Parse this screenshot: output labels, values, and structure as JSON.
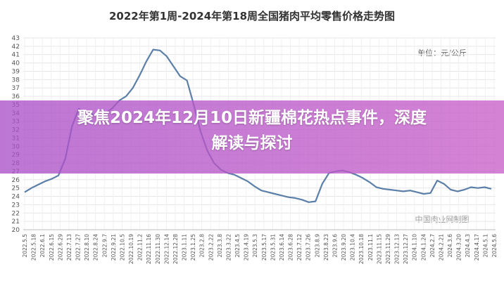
{
  "chart_data": {
    "type": "line",
    "title": "2022年第1周-2024年第18周全国猪肉平均零售价格走势图",
    "unit_label": "单位：元/公斤",
    "source_label": "中国肉业网制图",
    "ylim": [
      20,
      43
    ],
    "yticks": [
      20,
      21,
      22,
      23,
      24,
      25,
      26,
      27,
      28,
      29,
      30,
      31,
      32,
      33,
      34,
      35,
      36,
      37,
      38,
      39,
      40,
      41,
      42,
      43
    ],
    "x_tick_labels": [
      "2022.5.5",
      "2022.5.18",
      "2022.6.1",
      "2022.6.15",
      "2022.6.29",
      "2022.7.13",
      "2022.7.27",
      "2022.8.10",
      "2022.8.24",
      "2022.9.7",
      "2022.9.21",
      "2022.10.5",
      "2022.10.19",
      "2022.11.2",
      "2022.11.16",
      "2022.11.30",
      "2022.12.14",
      "2022.12.28",
      "2023.1.11",
      "2023.1.25",
      "2023.2.8",
      "2023.2.22",
      "2023.3.8",
      "2023.3.22",
      "2023.4.5",
      "2023.4.19",
      "2023.5.3",
      "2023.5.17",
      "2023.5.31",
      "2023.6.14",
      "2023.6.28",
      "2023.7.12",
      "2023.7.26",
      "2023.8.9",
      "2023.8.23",
      "2023.9.6",
      "2023.9.20",
      "2023.10.4",
      "2023.10.18",
      "2023.11.1",
      "2023.11.15",
      "2023.11.29",
      "2023.12.13",
      "2023.12.27",
      "2024.1.10",
      "2024.1.24",
      "2024.2.7",
      "2024.2.21",
      "2024.3.6",
      "2024.3.20",
      "2024.4.3",
      "2024.4.17",
      "2024.5.1",
      "2024.5.6"
    ],
    "values": [
      24.5,
      25.0,
      25.4,
      25.8,
      26.1,
      26.5,
      28.5,
      32.4,
      34.5,
      34.0,
      33.8,
      33.8,
      34.0,
      34.6,
      35.5,
      36.0,
      37.0,
      38.5,
      40.2,
      41.6,
      41.5,
      40.8,
      39.6,
      38.4,
      37.9,
      35.0,
      31.8,
      29.5,
      28.0,
      27.2,
      26.8,
      26.6,
      26.2,
      25.8,
      25.2,
      24.7,
      24.5,
      24.3,
      24.1,
      23.9,
      23.8,
      23.6,
      23.3,
      23.4,
      25.5,
      26.8,
      27.0,
      27.1,
      26.9,
      26.6,
      26.2,
      25.7,
      25.1,
      24.9,
      24.8,
      24.7,
      24.6,
      24.7,
      24.5,
      24.3,
      24.4,
      25.9,
      25.5,
      24.8,
      24.6,
      24.8,
      25.1,
      25.0,
      25.1,
      24.9
    ],
    "line_color": "#5b7fa8",
    "grid": true
  },
  "overlay": {
    "line1": "聚焦2024年12月10日新疆棉花热点事件，深度",
    "line2": "解读与探讨"
  }
}
